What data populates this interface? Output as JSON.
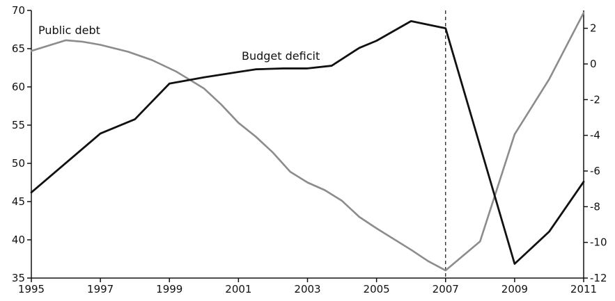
{
  "chart_data": {
    "type": "line",
    "title": "",
    "x_ticks": [
      "1995",
      "1997",
      "1999",
      "2001",
      "2003",
      "2005",
      "2007",
      "2009",
      "2011"
    ],
    "xlim": [
      1995,
      2011
    ],
    "left_axis": {
      "ylim": [
        35,
        70
      ],
      "ticks": [
        "35",
        "40",
        "45",
        "50",
        "55",
        "60",
        "65",
        "70"
      ]
    },
    "right_axis": {
      "ylim": [
        -12,
        3
      ],
      "ticks": [
        "-12",
        "-10",
        "-8",
        "-6",
        "-4",
        "-2",
        "0",
        "2"
      ]
    },
    "series": [
      {
        "name": "Public debt",
        "axis": "left",
        "color": "#8c8c8c",
        "points": [
          [
            1995,
            64.7
          ],
          [
            1996,
            66.1
          ],
          [
            1996.5,
            65.9
          ],
          [
            1997,
            65.5
          ],
          [
            1997.8,
            64.6
          ],
          [
            1998.5,
            63.5
          ],
          [
            1999.2,
            62.0
          ],
          [
            2000,
            59.8
          ],
          [
            2000.5,
            57.7
          ],
          [
            2001,
            55.3
          ],
          [
            2001.5,
            53.5
          ],
          [
            2002,
            51.4
          ],
          [
            2002.5,
            48.9
          ],
          [
            2003,
            47.5
          ],
          [
            2003.5,
            46.5
          ],
          [
            2004,
            45.1
          ],
          [
            2004.5,
            43.0
          ],
          [
            2005,
            41.5
          ],
          [
            2006,
            38.7
          ],
          [
            2006.5,
            37.2
          ],
          [
            2007,
            36.0
          ],
          [
            2008,
            39.8
          ],
          [
            2009,
            53.8
          ],
          [
            2010,
            61.0
          ],
          [
            2011,
            69.7
          ]
        ]
      },
      {
        "name": "Budget deficit",
        "axis": "right",
        "color": "#111111",
        "points": [
          [
            1995,
            -7.2
          ],
          [
            1997,
            -3.9
          ],
          [
            1998,
            -3.1
          ],
          [
            1999,
            -1.1
          ],
          [
            2000,
            -0.75
          ],
          [
            2001,
            -0.45
          ],
          [
            2001.5,
            -0.3
          ],
          [
            2002.3,
            -0.25
          ],
          [
            2003,
            -0.25
          ],
          [
            2003.7,
            -0.1
          ],
          [
            2004.5,
            0.9
          ],
          [
            2005,
            1.3
          ],
          [
            2006,
            2.4
          ],
          [
            2007,
            2.0
          ],
          [
            2009,
            -11.2
          ],
          [
            2010,
            -9.4
          ],
          [
            2011,
            -6.6
          ]
        ]
      }
    ],
    "annotations": [
      {
        "text": "Public debt"
      },
      {
        "text": "Budget deficit"
      }
    ],
    "vline": {
      "x": 2007,
      "style": "dashed"
    },
    "grid": false,
    "legend": "none"
  }
}
